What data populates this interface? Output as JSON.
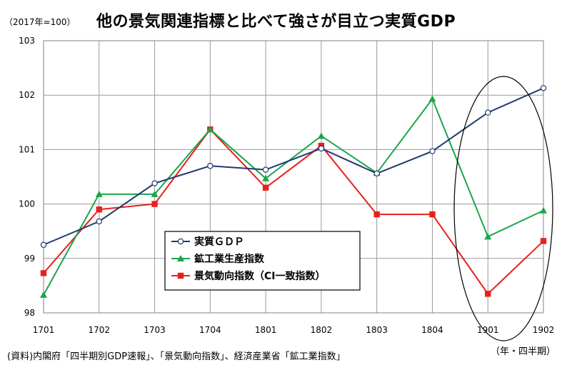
{
  "header": {
    "unit": "（2017年=100）",
    "title": "他の景気関連指標と比べて強さが目立つ実質GDP"
  },
  "footer": {
    "source": "(資料)内閣府「四半期別GDP速報」、「景気動向指数」、経済産業省「鉱工業指数」",
    "period_label": "（年・四半期）"
  },
  "chart_data": {
    "type": "line",
    "title": "他の景気関連指標と比べて強さが目立つ実質GDP",
    "categories": [
      "1701",
      "1702",
      "1703",
      "1704",
      "1801",
      "1802",
      "1803",
      "1804",
      "1901",
      "1902"
    ],
    "ylim": [
      98,
      103
    ],
    "yticks": [
      98,
      99,
      100,
      101,
      102,
      103
    ],
    "grid": true,
    "legend_position": "center-left",
    "series": [
      {
        "name": "実質ＧＤＰ",
        "color": "#1f3a6e",
        "marker": "circle",
        "values": [
          99.25,
          99.68,
          100.38,
          100.7,
          100.63,
          101.02,
          100.56,
          100.97,
          101.68,
          102.13
        ]
      },
      {
        "name": "鉱工業生産指数",
        "color": "#1aa64a",
        "marker": "triangle",
        "values": [
          98.33,
          100.18,
          100.18,
          101.37,
          100.47,
          101.25,
          100.57,
          101.93,
          99.4,
          99.88
        ]
      },
      {
        "name": "景気動向指数（CI一致指数）",
        "color": "#e8201e",
        "marker": "square",
        "values": [
          98.73,
          99.9,
          100.0,
          101.37,
          100.3,
          101.07,
          99.81,
          99.81,
          98.35,
          99.32
        ]
      }
    ],
    "annotation": "ellipse around 1901–1902"
  }
}
